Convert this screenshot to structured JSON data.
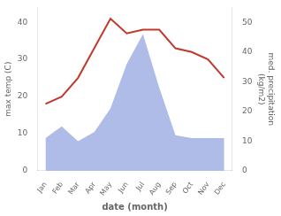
{
  "chart_data": {
    "type": "line",
    "xlabel": "date (month)",
    "ylabel": "max temp (C)",
    "y2label": "med. precipitation\n(kg/m2)",
    "categories": [
      "Jan",
      "Feb",
      "Mar",
      "Apr",
      "May",
      "Jun",
      "Jul",
      "Aug",
      "Sep",
      "Oct",
      "Nov",
      "Dec"
    ],
    "series": [
      {
        "type": "area",
        "axis": "y2",
        "color": "#b0bce8",
        "values": [
          11,
          15,
          10,
          13,
          21,
          36,
          46,
          28,
          12,
          11,
          11,
          11
        ]
      },
      {
        "type": "line",
        "color": "#c0392b",
        "values": [
          18,
          20,
          25,
          33,
          41,
          37,
          38,
          38,
          33,
          32,
          30,
          25
        ]
      }
    ],
    "ylim": [
      0,
      44
    ],
    "yticks": [
      0,
      10,
      20,
      30,
      40
    ],
    "y2lim": [
      0,
      55
    ],
    "y2ticks": [
      0,
      10,
      20,
      30,
      40,
      50
    ],
    "grid": false
  }
}
